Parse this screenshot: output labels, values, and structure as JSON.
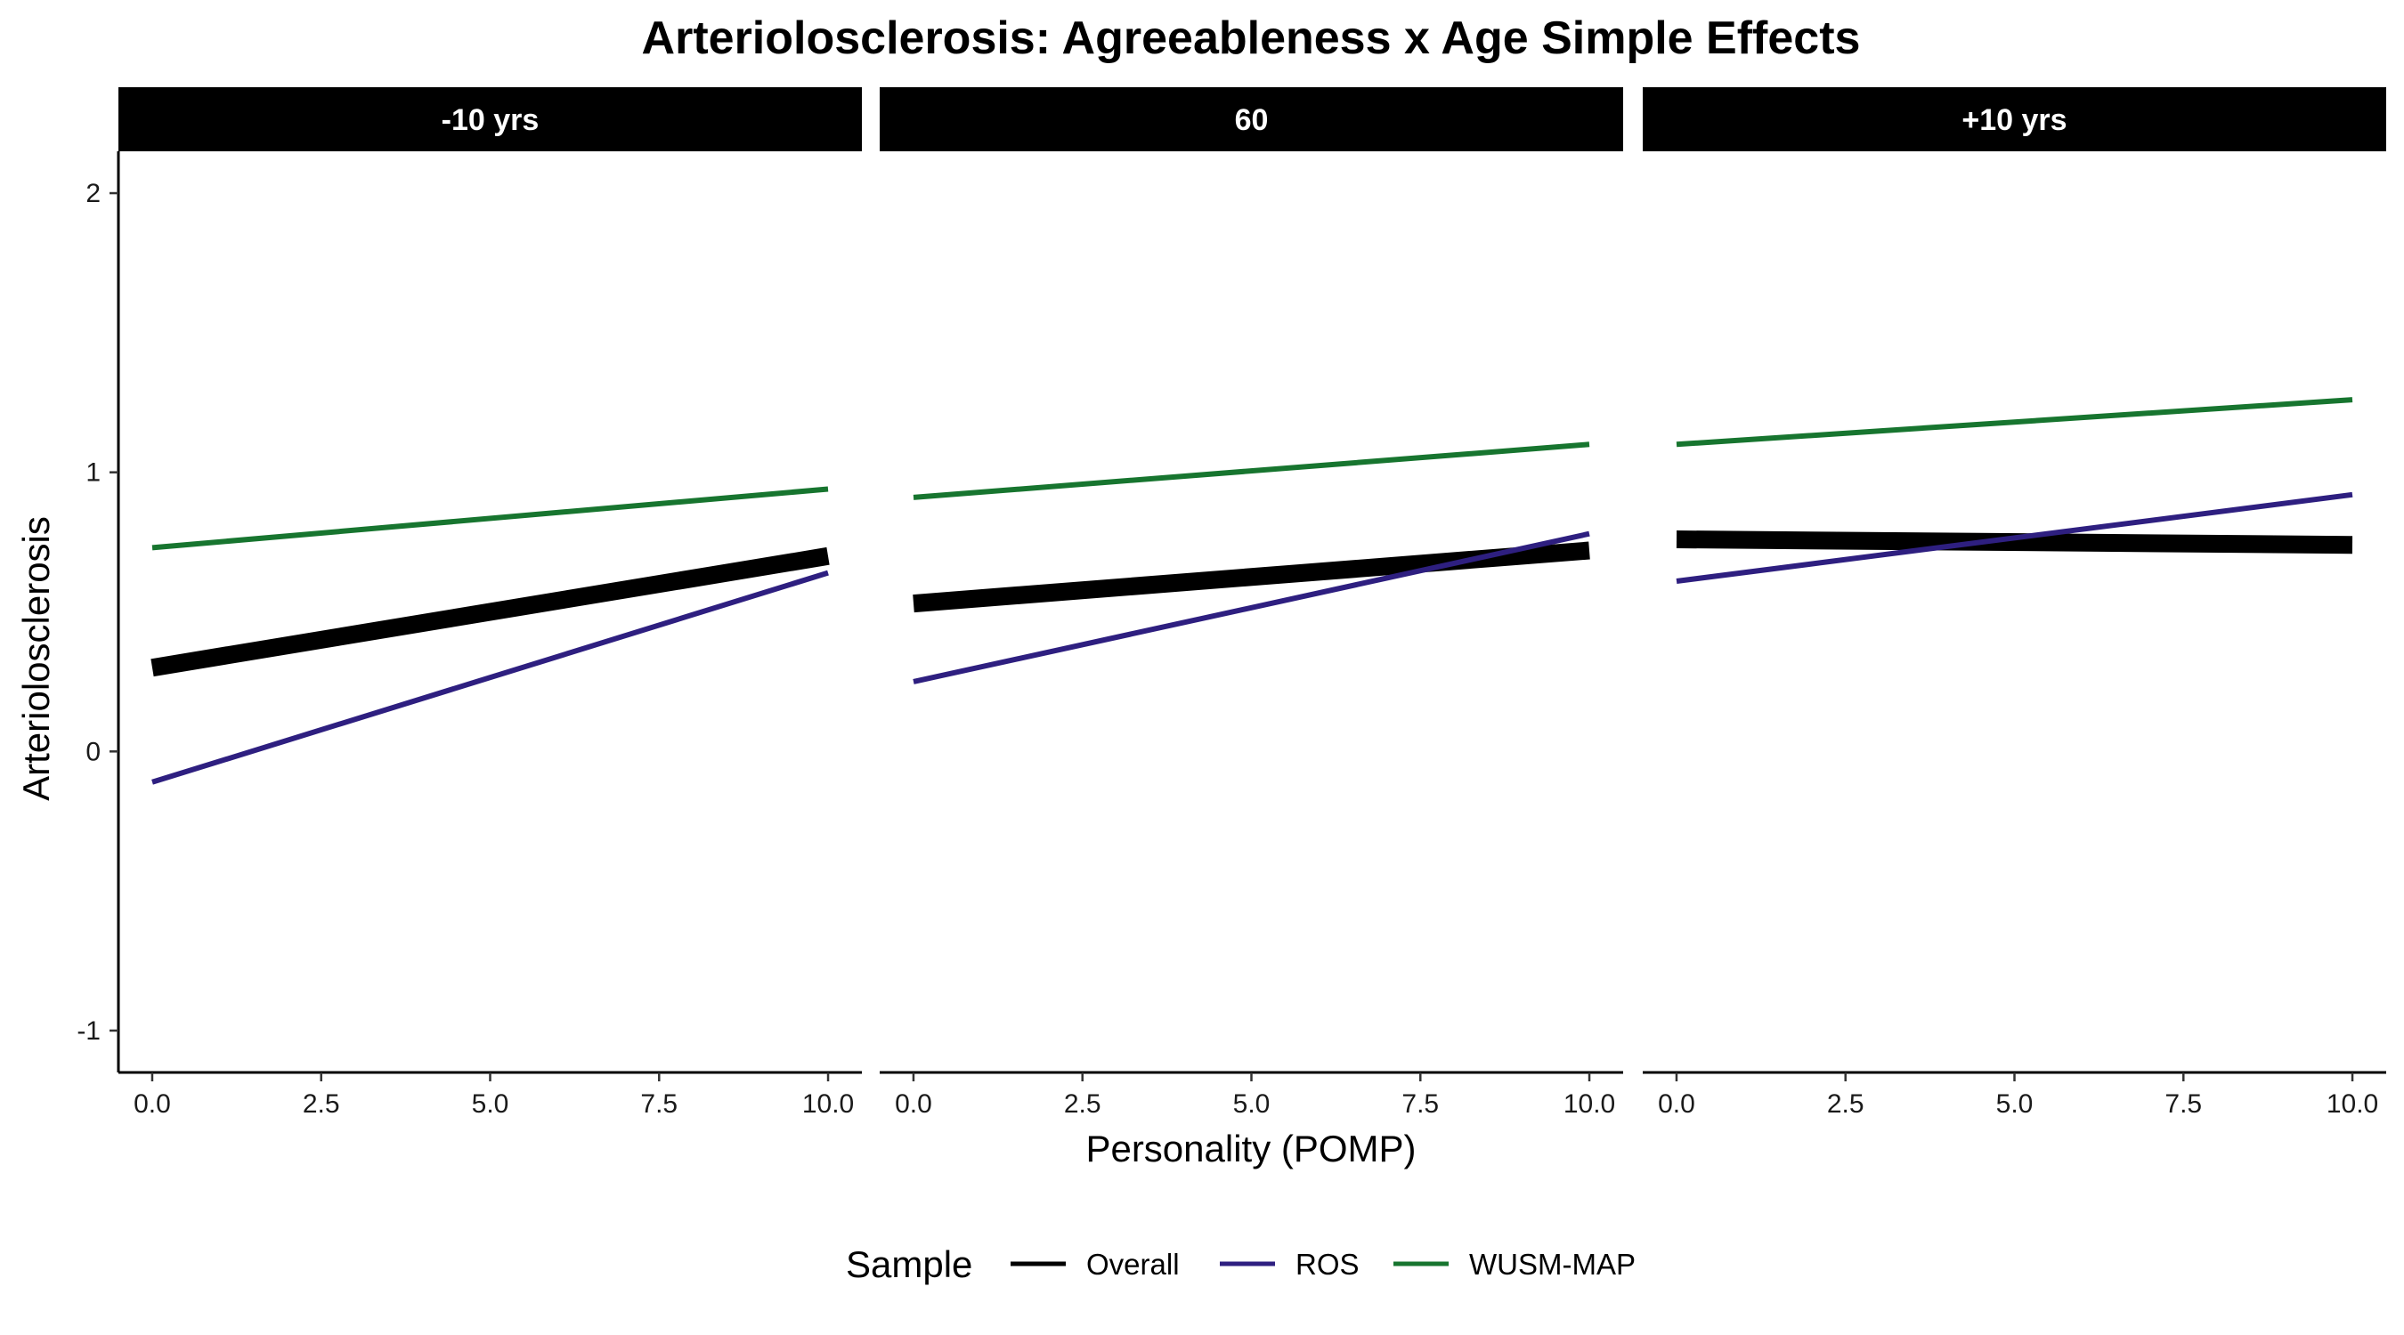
{
  "chart_data": {
    "type": "line",
    "title": "Arteriolosclerosis: Agreeableness x Age Simple Effects",
    "xlabel": "Personality (POMP)",
    "ylabel": "Arteriolosclerosis",
    "xlim": [
      -0.5,
      10.5
    ],
    "ylim": [
      -1.15,
      2.15
    ],
    "x_ticks": [
      0,
      2.5,
      5,
      7.5,
      10
    ],
    "x_tick_labels": [
      "0.0",
      "2.5",
      "5.0",
      "7.5",
      "10.0"
    ],
    "y_ticks": [
      -1,
      0,
      1,
      2
    ],
    "y_tick_labels": [
      "-1",
      "0",
      "1",
      "2"
    ],
    "grid": false,
    "legend": {
      "title": "Sample",
      "position": "bottom",
      "entries": [
        "Overall",
        "ROS",
        "WUSM-MAP"
      ]
    },
    "colors": {
      "Overall": "#000000",
      "ROS": "#2e1f80",
      "WUSM-MAP": "#17752f"
    },
    "panels": [
      {
        "label": "-10 yrs",
        "series": [
          {
            "name": "Overall",
            "x": [
              0,
              10
            ],
            "y": [
              0.3,
              0.7
            ]
          },
          {
            "name": "ROS",
            "x": [
              0,
              10
            ],
            "y": [
              -0.11,
              0.64
            ]
          },
          {
            "name": "WUSM-MAP",
            "x": [
              0,
              10
            ],
            "y": [
              0.73,
              0.94
            ]
          }
        ]
      },
      {
        "label": "60",
        "series": [
          {
            "name": "Overall",
            "x": [
              0,
              10
            ],
            "y": [
              0.53,
              0.72
            ]
          },
          {
            "name": "ROS",
            "x": [
              0,
              10
            ],
            "y": [
              0.25,
              0.78
            ]
          },
          {
            "name": "WUSM-MAP",
            "x": [
              0,
              10
            ],
            "y": [
              0.91,
              1.1
            ]
          }
        ]
      },
      {
        "label": "+10 yrs",
        "series": [
          {
            "name": "Overall",
            "x": [
              0,
              10
            ],
            "y": [
              0.76,
              0.74
            ]
          },
          {
            "name": "ROS",
            "x": [
              0,
              10
            ],
            "y": [
              0.61,
              0.92
            ]
          },
          {
            "name": "WUSM-MAP",
            "x": [
              0,
              10
            ],
            "y": [
              1.1,
              1.26
            ]
          }
        ]
      }
    ]
  }
}
